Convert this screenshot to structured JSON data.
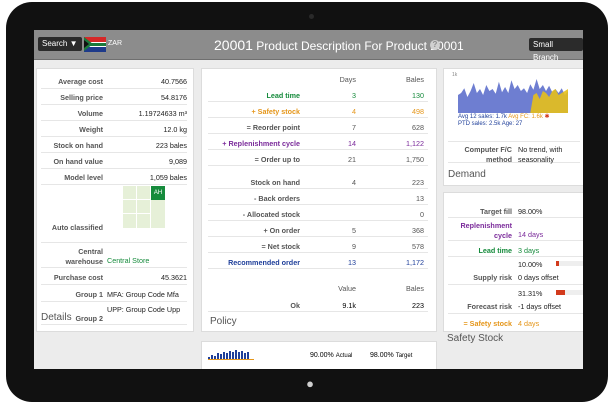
{
  "header": {
    "search_label": "Search ▼",
    "currency": "ZAR",
    "product_code": "20001",
    "product_title": "Product Description For Product 20001",
    "help_label": "?",
    "branch_label": "Small Branch"
  },
  "details": {
    "title": "Details",
    "rows": [
      {
        "label": "Average cost",
        "value": "40.7566"
      },
      {
        "label": "Selling price",
        "value": "54.8176"
      },
      {
        "label": "Volume",
        "value": "1.19724633 m³"
      },
      {
        "label": "Weight",
        "value": "12.0 kg"
      },
      {
        "label": "Stock on hand",
        "value": "223 bales"
      },
      {
        "label": "On hand value",
        "value": "9,089"
      },
      {
        "label": "Model level",
        "value": "1,059 bales"
      }
    ],
    "auto_classified_label": "Auto classified",
    "classification_badge": "AH",
    "central_warehouse_label": "Central warehouse",
    "central_warehouse_value": "Central Store",
    "purchase_cost_label": "Purchase cost",
    "purchase_cost_value": "45.3621",
    "group1_label": "Group 1",
    "group1_value": "MFA: Group Code Mfa",
    "group2_label": "Group 2",
    "group2_value": "UPP: Group Code Upp"
  },
  "policy": {
    "title": "Policy",
    "header_days": "Days",
    "header_bales": "Bales",
    "rows": [
      {
        "label": "Lead time",
        "days": "3",
        "bales": "130",
        "color": "#168b3c"
      },
      {
        "label": "+ Safety stock",
        "days": "4",
        "bales": "498",
        "color": "#e5961a"
      },
      {
        "label": "= Reorder point",
        "days": "7",
        "bales": "628",
        "color": "#555555"
      },
      {
        "label": "+ Replenishment cycle",
        "days": "14",
        "bales": "1,122",
        "color": "#7a2a9a"
      },
      {
        "label": "= Order up to",
        "days": "21",
        "bales": "1,750",
        "color": "#555555"
      }
    ],
    "rows2": [
      {
        "label": "Stock on hand",
        "days": "4",
        "bales": "223",
        "color": "#555555"
      },
      {
        "label": "- Back orders",
        "days": "",
        "bales": "13",
        "color": "#555555"
      },
      {
        "label": "- Allocated stock",
        "days": "",
        "bales": "0",
        "color": "#555555"
      },
      {
        "label": "+ On order",
        "days": "5",
        "bales": "368",
        "color": "#555555"
      },
      {
        "label": "= Net stock",
        "days": "9",
        "bales": "578",
        "color": "#555555"
      },
      {
        "label": "Recommended order",
        "days": "13",
        "bales": "1,172",
        "color": "#1f3f9a"
      }
    ],
    "value_header": "Value",
    "bales_header": "Bales",
    "ok_label": "Ok",
    "ok_value": "9.1k",
    "ok_bales": "223"
  },
  "demand": {
    "title": "Demand",
    "chart_tick": "1k",
    "avg_sales": "Avg 12 sales: 1.7k",
    "avg_fc": "Avg FC: 1.6k",
    "ptd_sales": "PTD sales: 2.5k",
    "age": "Age: 27",
    "computer_fc_label": "Computer F/C method",
    "computer_fc_value": "No trend, with seasonality",
    "chart_data": {
      "type": "area",
      "series": [
        {
          "values": [
            0.45,
            0.5,
            0.62,
            0.4,
            0.55,
            0.75,
            0.5,
            0.6,
            0.45,
            0.7,
            0.55,
            0.6,
            0.48,
            0.78,
            0.52,
            0.65,
            0.5,
            0.82,
            0.6,
            0.7,
            0.55,
            0.62,
            0.5,
            0.72,
            0.58,
            0.85,
            0.6,
            0.7,
            0.55,
            0.68,
            0.52,
            0.6,
            0.5,
            0.62,
            0.45,
            0.55
          ]
        },
        {
          "values": [
            0,
            0,
            0,
            0,
            0,
            0,
            0,
            0,
            0,
            0,
            0,
            0,
            0,
            0,
            0,
            0,
            0,
            0,
            0,
            0,
            0,
            0,
            0,
            0,
            0.45,
            0.5,
            0.35,
            0.55,
            0.5,
            0.4,
            0.55,
            0.6,
            0.45,
            0.5,
            0.55,
            0.6
          ]
        }
      ],
      "colors": [
        "#5567c9",
        "#e5c01a"
      ]
    }
  },
  "safety_stock": {
    "title": "Safety Stock",
    "target_fill_label": "Target fill",
    "target_fill_value": "98.00%",
    "replenishment_cycle_label": "Replenishment cycle",
    "replenishment_cycle_value": "14 days",
    "lead_time_label": "Lead time",
    "lead_time_value": "3 days",
    "supply_pct": "10.00%",
    "supply_pct_fill": 0.1,
    "supply_risk_label": "Supply risk",
    "supply_risk_value": "0 days offset",
    "forecast_pct": "31.31%",
    "forecast_pct_fill": 0.31,
    "forecast_risk_label": "Forecast risk",
    "forecast_risk_value": "-1 days offset",
    "safety_stock_label": "= Safety stock",
    "safety_stock_value": "4 days"
  },
  "bottom": {
    "actual_pct": "90.00%",
    "actual_label": "Actual",
    "target_pct": "98.00%",
    "target_label": "Target"
  }
}
